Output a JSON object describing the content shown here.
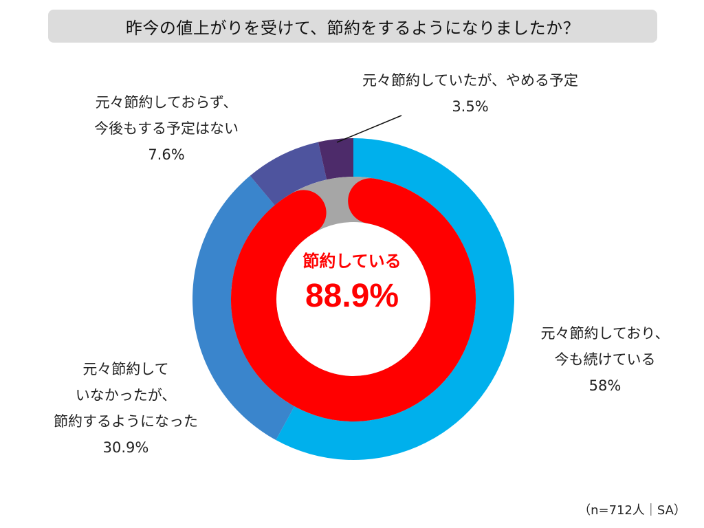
{
  "chart_data": {
    "type": "donut",
    "title": "昨今の値上がりを受けて、節約をするようになりましたか？",
    "outer_ring": {
      "series": [
        {
          "name": "元々節約しており、今も続けている",
          "lines": [
            "元々節約しており、",
            "今も続けている"
          ],
          "value": 58,
          "value_label": "58%",
          "color": "#00b0ec"
        },
        {
          "name": "元々節約していなかったが、節約するようになった",
          "lines": [
            "元々節約して",
            "いなかったが、",
            "節約するようになった"
          ],
          "value": 30.9,
          "value_label": "30.9%",
          "color": "#3a85cc"
        },
        {
          "name": "元々節約しておらず、今後もする予定はない",
          "lines": [
            "元々節約しておらず、",
            "今後もする予定はない"
          ],
          "value": 7.6,
          "value_label": "7.6%",
          "color": "#4e549e"
        },
        {
          "name": "元々節約していたが、やめる予定",
          "lines": [
            "元々節約していたが、やめる予定"
          ],
          "value": 3.5,
          "value_label": "3.5%",
          "color": "#4d2b6a"
        }
      ]
    },
    "inner_ring": {
      "label": "節約している",
      "value": 88.9,
      "value_label": "88.9%",
      "color": "#ff0000",
      "remainder_color": "#a6a6a6"
    }
  },
  "footnote": "（n=712人｜SA）"
}
